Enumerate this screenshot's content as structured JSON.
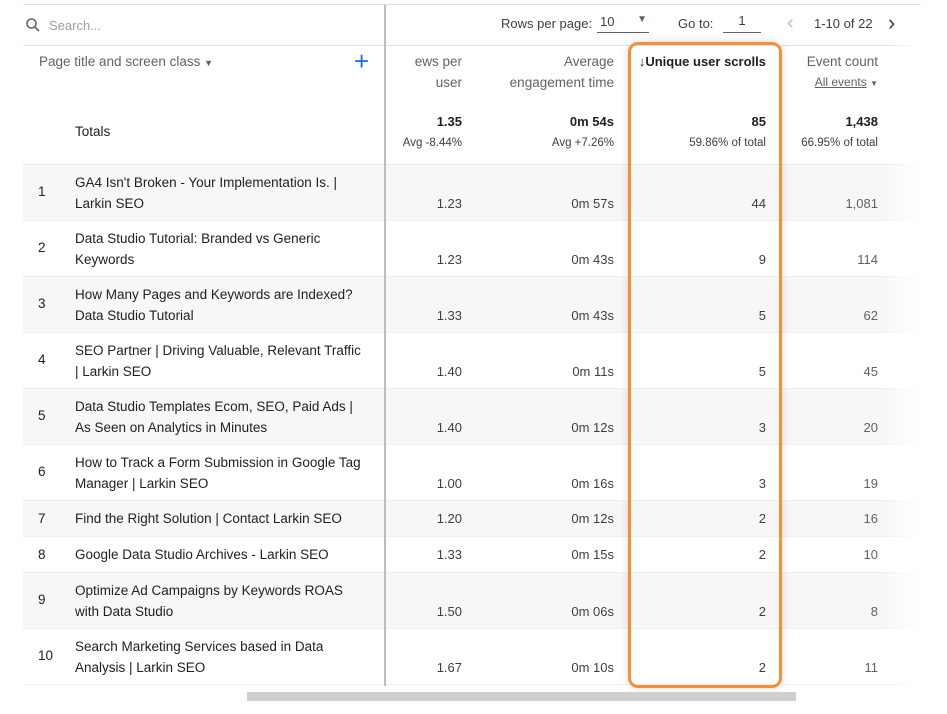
{
  "search": {
    "placeholder": "Search..."
  },
  "pagination": {
    "rows_per_page_label": "Rows per page:",
    "rows_per_page": "10",
    "goto_label": "Go to:",
    "goto_value": "1",
    "range": "1-10 of 22"
  },
  "columns": {
    "dimension": "Page title and screen class",
    "views_per_user": "ews per user",
    "avg_engagement": "Average engagement time",
    "unique_scrolls": "Unique user scrolls",
    "event_count": "Event count",
    "event_filter": "All events"
  },
  "totals": {
    "label": "Totals",
    "views_per_user": "1.35",
    "views_per_user_sub": "Avg -8.44%",
    "avg_engagement": "0m 54s",
    "avg_engagement_sub": "Avg +7.26%",
    "unique_scrolls": "85",
    "unique_scrolls_sub": "59.86% of total",
    "event_count": "1,438",
    "event_count_sub": "66.95% of total"
  },
  "highlight_color": "#f0913a",
  "rows": [
    {
      "idx": "1",
      "title": "GA4 Isn't Broken - Your Implementation Is. | Larkin SEO",
      "vpu": "1.23",
      "eng": "0m 57s",
      "scrolls": "44",
      "events": "1,081"
    },
    {
      "idx": "2",
      "title": "Data Studio Tutorial: Branded vs Generic Keywords",
      "vpu": "1.23",
      "eng": "0m 43s",
      "scrolls": "9",
      "events": "114"
    },
    {
      "idx": "3",
      "title": "How Many Pages and Keywords are Indexed? Data Studio Tutorial",
      "vpu": "1.33",
      "eng": "0m 43s",
      "scrolls": "5",
      "events": "62"
    },
    {
      "idx": "4",
      "title": "SEO Partner | Driving Valuable, Relevant Traffic | Larkin SEO",
      "vpu": "1.40",
      "eng": "0m 11s",
      "scrolls": "5",
      "events": "45"
    },
    {
      "idx": "5",
      "title": "Data Studio Templates Ecom, SEO, Paid Ads | As Seen on Analytics in Minutes",
      "vpu": "1.40",
      "eng": "0m 12s",
      "scrolls": "3",
      "events": "20"
    },
    {
      "idx": "6",
      "title": "How to Track a Form Submission in Google Tag Manager | Larkin SEO",
      "vpu": "1.00",
      "eng": "0m 16s",
      "scrolls": "3",
      "events": "19"
    },
    {
      "idx": "7",
      "title": "Find the Right Solution | Contact Larkin SEO",
      "vpu": "1.20",
      "eng": "0m 12s",
      "scrolls": "2",
      "events": "16"
    },
    {
      "idx": "8",
      "title": "Google Data Studio Archives - Larkin SEO",
      "vpu": "1.33",
      "eng": "0m 15s",
      "scrolls": "2",
      "events": "10"
    },
    {
      "idx": "9",
      "title": "Optimize Ad Campaigns by Keywords ROAS with Data Studio",
      "vpu": "1.50",
      "eng": "0m 06s",
      "scrolls": "2",
      "events": "8"
    },
    {
      "idx": "10",
      "title": "Search Marketing Services based in Data Analysis | Larkin SEO",
      "vpu": "1.67",
      "eng": "0m 10s",
      "scrolls": "2",
      "events": "11"
    }
  ]
}
